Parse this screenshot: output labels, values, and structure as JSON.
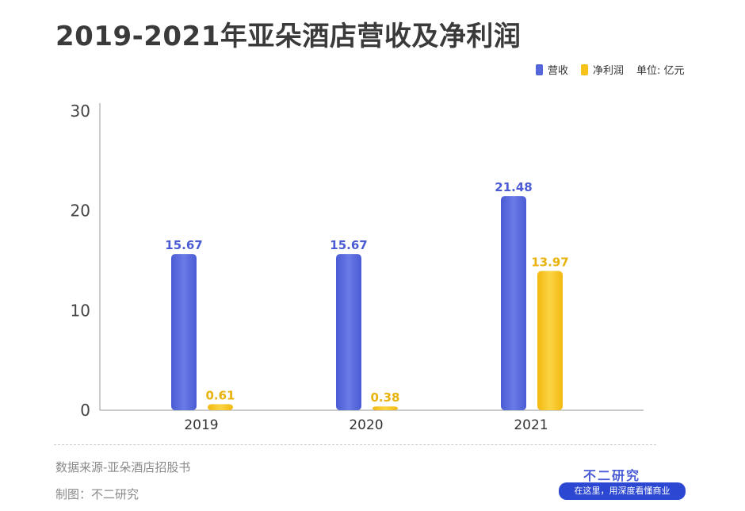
{
  "title": "2019-2021年亚朵酒店营收及净利润",
  "legend": {
    "items": [
      {
        "label": "营收",
        "color": "#5566d9"
      },
      {
        "label": "净利润",
        "color": "#f6c21a"
      }
    ],
    "unit": "单位: 亿元"
  },
  "source": "数据来源-亚朵酒店招股书",
  "maker": "制图：不二研究",
  "brand": "不二研究",
  "slogan": "在这里，用深度看懂商业",
  "chart_data": {
    "type": "bar",
    "title": "2019-2021年亚朵酒店营收及净利润",
    "categories": [
      "2019",
      "2020",
      "2021"
    ],
    "series": [
      {
        "name": "营收",
        "values": [
          15.67,
          15.67,
          21.48
        ],
        "color": "#5566d9"
      },
      {
        "name": "净利润",
        "values": [
          0.61,
          0.38,
          13.97
        ],
        "color": "#f6c21a"
      }
    ],
    "ylim": [
      0,
      30
    ],
    "yticks": [
      0,
      10,
      20,
      30
    ],
    "ylabel": "",
    "xlabel": "",
    "grid": false,
    "legend_position": "top-right"
  }
}
